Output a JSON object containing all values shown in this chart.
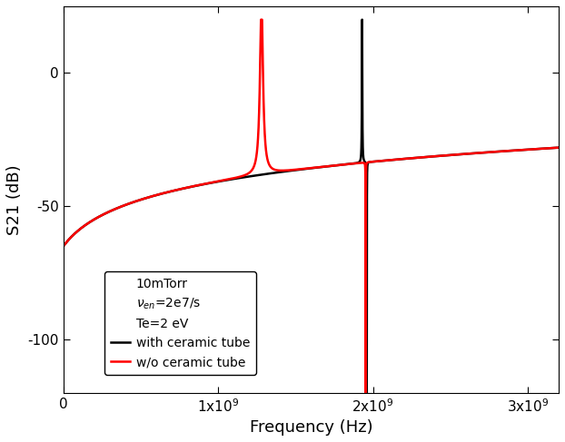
{
  "title": "",
  "xlabel": "Frequency (Hz)",
  "ylabel": "S21 (dB)",
  "xlim": [
    0,
    3200000000.0
  ],
  "ylim": [
    -120,
    25
  ],
  "yticks": [
    0,
    -50,
    -100
  ],
  "xticks": [
    0,
    1000000000.0,
    2000000000.0,
    3000000000.0
  ],
  "background_color": "#ffffff",
  "line_black_color": "#000000",
  "line_red_color": "#ff0000",
  "f0_black": 1930000000.0,
  "f_anti_black": 1960000000.0,
  "f0_red": 1280000000.0,
  "f_anti_red": 1953000000.0,
  "nu_en": 20000000.0,
  "Te_eV": 2.0,
  "pressure": "10mTorr"
}
